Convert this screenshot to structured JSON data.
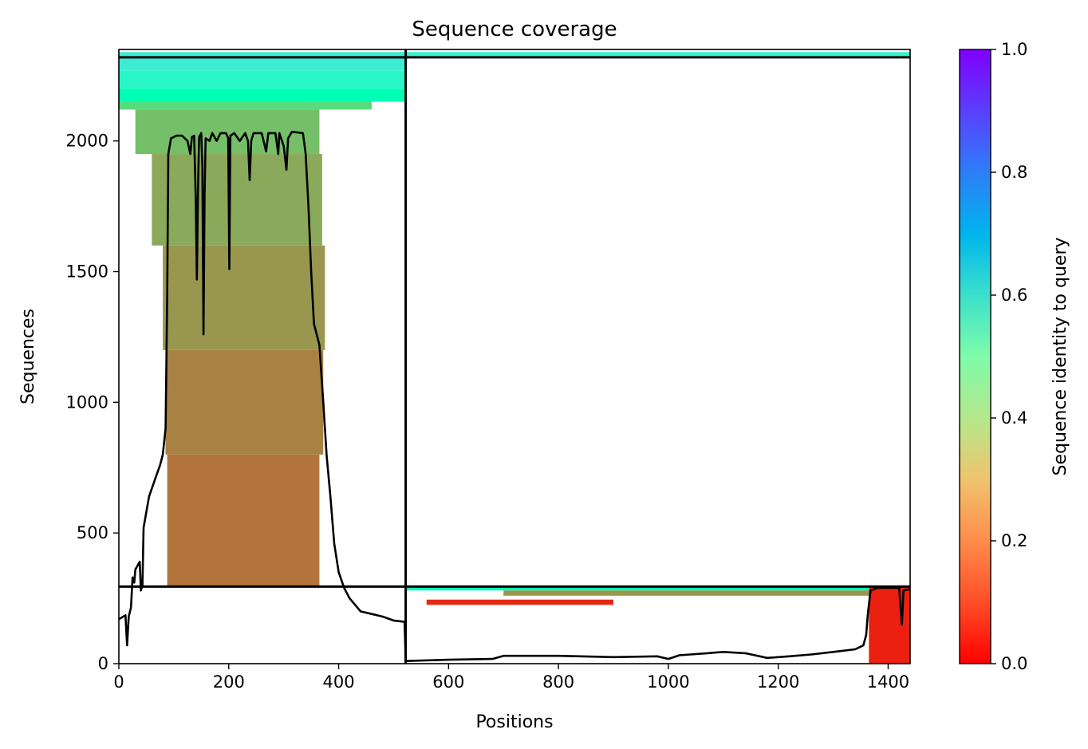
{
  "chart_data": {
    "type": "heatmap",
    "title": "Sequence coverage",
    "xlabel": "Positions",
    "ylabel": "Sequences",
    "xlim": [
      0,
      1440
    ],
    "ylim": [
      0,
      2350
    ],
    "x_ticks": [
      {
        "value": 0,
        "label": "0"
      },
      {
        "value": 200,
        "label": "200"
      },
      {
        "value": 400,
        "label": "400"
      },
      {
        "value": 600,
        "label": "600"
      },
      {
        "value": 800,
        "label": "800"
      },
      {
        "value": 1000,
        "label": "1000"
      },
      {
        "value": 1200,
        "label": "1200"
      },
      {
        "value": 1400,
        "label": "1400"
      }
    ],
    "y_ticks": [
      {
        "value": 0,
        "label": "0"
      },
      {
        "value": 500,
        "label": "500"
      },
      {
        "value": 1000,
        "label": "1000"
      },
      {
        "value": 1500,
        "label": "1500"
      },
      {
        "value": 2000,
        "label": "2000"
      }
    ],
    "colorbar": {
      "label": "Sequence identity to query",
      "range": [
        0,
        1
      ],
      "colormap": "rainbow_r",
      "ticks": [
        {
          "value": 0.0,
          "label": "0.0"
        },
        {
          "value": 0.2,
          "label": "0.2"
        },
        {
          "value": 0.4,
          "label": "0.4"
        },
        {
          "value": 0.6,
          "label": "0.6"
        },
        {
          "value": 0.8,
          "label": "0.8"
        },
        {
          "value": 1.0,
          "label": "1.0"
        }
      ]
    },
    "boundaries": {
      "vertical_x": 522,
      "horizontal_y": [
        295,
        2320
      ]
    },
    "blocks": [
      {
        "x": [
          0,
          522
        ],
        "y": [
          2320,
          2340
        ],
        "identity": 0.62
      },
      {
        "x": [
          522,
          1440
        ],
        "y": [
          2320,
          2340
        ],
        "identity": 0.6
      },
      {
        "x": [
          0,
          522
        ],
        "y": [
          2270,
          2320
        ],
        "identity": 0.62
      },
      {
        "x": [
          0,
          522
        ],
        "y": [
          2200,
          2270
        ],
        "identity": 0.58
      },
      {
        "x": [
          0,
          522
        ],
        "y": [
          2150,
          2200
        ],
        "identity": 0.5
      },
      {
        "x": [
          0,
          460
        ],
        "y": [
          2120,
          2150
        ],
        "identity": 0.33
      },
      {
        "x": [
          30,
          365
        ],
        "y": [
          1950,
          2120
        ],
        "identity": 0.27
      },
      {
        "x": [
          60,
          370
        ],
        "y": [
          1600,
          1950
        ],
        "identity": 0.23
      },
      {
        "x": [
          80,
          375
        ],
        "y": [
          1200,
          1600
        ],
        "identity": 0.2
      },
      {
        "x": [
          85,
          372
        ],
        "y": [
          800,
          1200
        ],
        "identity": 0.17
      },
      {
        "x": [
          88,
          365
        ],
        "y": [
          295,
          800
        ],
        "identity": 0.15
      },
      {
        "x": [
          522,
          1440
        ],
        "y": [
          280,
          295
        ],
        "identity": 0.5
      },
      {
        "x": [
          700,
          1440
        ],
        "y": [
          260,
          280
        ],
        "identity": 0.2
      },
      {
        "x": [
          560,
          900
        ],
        "y": [
          225,
          245
        ],
        "identity": 0.05
      },
      {
        "x": [
          1365,
          1440
        ],
        "y": [
          0,
          295
        ],
        "identity": 0.04
      }
    ],
    "coverage_line": {
      "color": "#000000",
      "points": [
        [
          0,
          170
        ],
        [
          12,
          185
        ],
        [
          15,
          70
        ],
        [
          18,
          180
        ],
        [
          22,
          215
        ],
        [
          25,
          330
        ],
        [
          28,
          310
        ],
        [
          30,
          360
        ],
        [
          38,
          390
        ],
        [
          40,
          280
        ],
        [
          43,
          300
        ],
        [
          45,
          520
        ],
        [
          55,
          640
        ],
        [
          65,
          700
        ],
        [
          75,
          760
        ],
        [
          80,
          800
        ],
        [
          85,
          900
        ],
        [
          88,
          1400
        ],
        [
          90,
          1950
        ],
        [
          95,
          2010
        ],
        [
          105,
          2020
        ],
        [
          115,
          2020
        ],
        [
          125,
          2000
        ],
        [
          130,
          1950
        ],
        [
          133,
          2015
        ],
        [
          137,
          2020
        ],
        [
          140,
          1780
        ],
        [
          142,
          1470
        ],
        [
          144,
          1800
        ],
        [
          146,
          2015
        ],
        [
          150,
          2030
        ],
        [
          152,
          1900
        ],
        [
          154,
          1260
        ],
        [
          156,
          1800
        ],
        [
          158,
          2010
        ],
        [
          165,
          2000
        ],
        [
          170,
          2030
        ],
        [
          178,
          2000
        ],
        [
          185,
          2030
        ],
        [
          195,
          2030
        ],
        [
          199,
          2010
        ],
        [
          201,
          1510
        ],
        [
          203,
          2020
        ],
        [
          210,
          2030
        ],
        [
          220,
          2000
        ],
        [
          230,
          2030
        ],
        [
          235,
          2000
        ],
        [
          238,
          1850
        ],
        [
          241,
          2000
        ],
        [
          245,
          2030
        ],
        [
          260,
          2030
        ],
        [
          268,
          1960
        ],
        [
          272,
          2030
        ],
        [
          285,
          2030
        ],
        [
          290,
          1950
        ],
        [
          292,
          2030
        ],
        [
          300,
          1980
        ],
        [
          305,
          1890
        ],
        [
          308,
          2010
        ],
        [
          315,
          2035
        ],
        [
          335,
          2030
        ],
        [
          340,
          1950
        ],
        [
          345,
          1750
        ],
        [
          350,
          1500
        ],
        [
          355,
          1300
        ],
        [
          365,
          1220
        ],
        [
          372,
          1000
        ],
        [
          378,
          800
        ],
        [
          385,
          640
        ],
        [
          392,
          460
        ],
        [
          400,
          350
        ],
        [
          410,
          290
        ],
        [
          420,
          250
        ],
        [
          440,
          200
        ],
        [
          460,
          190
        ],
        [
          480,
          180
        ],
        [
          500,
          165
        ],
        [
          520,
          160
        ],
        [
          522,
          10
        ],
        [
          600,
          15
        ],
        [
          680,
          18
        ],
        [
          700,
          30
        ],
        [
          800,
          30
        ],
        [
          840,
          28
        ],
        [
          900,
          25
        ],
        [
          980,
          28
        ],
        [
          1000,
          18
        ],
        [
          1020,
          32
        ],
        [
          1060,
          38
        ],
        [
          1100,
          45
        ],
        [
          1140,
          40
        ],
        [
          1180,
          22
        ],
        [
          1220,
          28
        ],
        [
          1260,
          35
        ],
        [
          1300,
          45
        ],
        [
          1340,
          55
        ],
        [
          1355,
          70
        ],
        [
          1360,
          110
        ],
        [
          1363,
          190
        ],
        [
          1368,
          280
        ],
        [
          1380,
          290
        ],
        [
          1420,
          290
        ],
        [
          1425,
          150
        ],
        [
          1428,
          280
        ],
        [
          1440,
          285
        ]
      ]
    }
  }
}
